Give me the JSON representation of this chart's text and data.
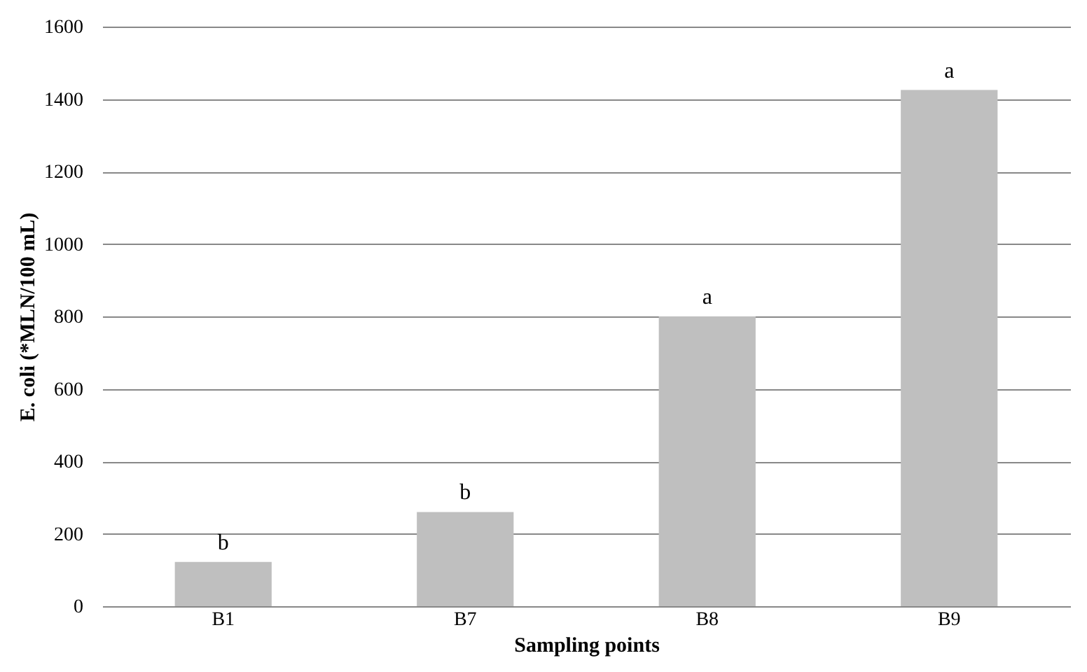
{
  "chart_data": {
    "type": "bar",
    "xlabel": "Sampling points",
    "ylabel": "E. coli (*MLN/100 mL)",
    "categories": [
      "B1",
      "B7",
      "B8",
      "B9"
    ],
    "values": [
      122,
      260,
      800,
      1425
    ],
    "color": "#bfbfbf",
    "ylim": [
      0,
      1600
    ],
    "yticks": [
      0,
      200,
      400,
      600,
      800,
      1000,
      1200,
      1400,
      1600
    ],
    "grid": "y",
    "annotations": [
      {
        "text": "b",
        "x": "B1",
        "y": 122
      },
      {
        "text": "b",
        "x": "B7",
        "y": 260
      },
      {
        "text": "a",
        "x": "B8",
        "y": 800
      },
      {
        "text": "a",
        "x": "B9",
        "y": 1425
      }
    ]
  }
}
